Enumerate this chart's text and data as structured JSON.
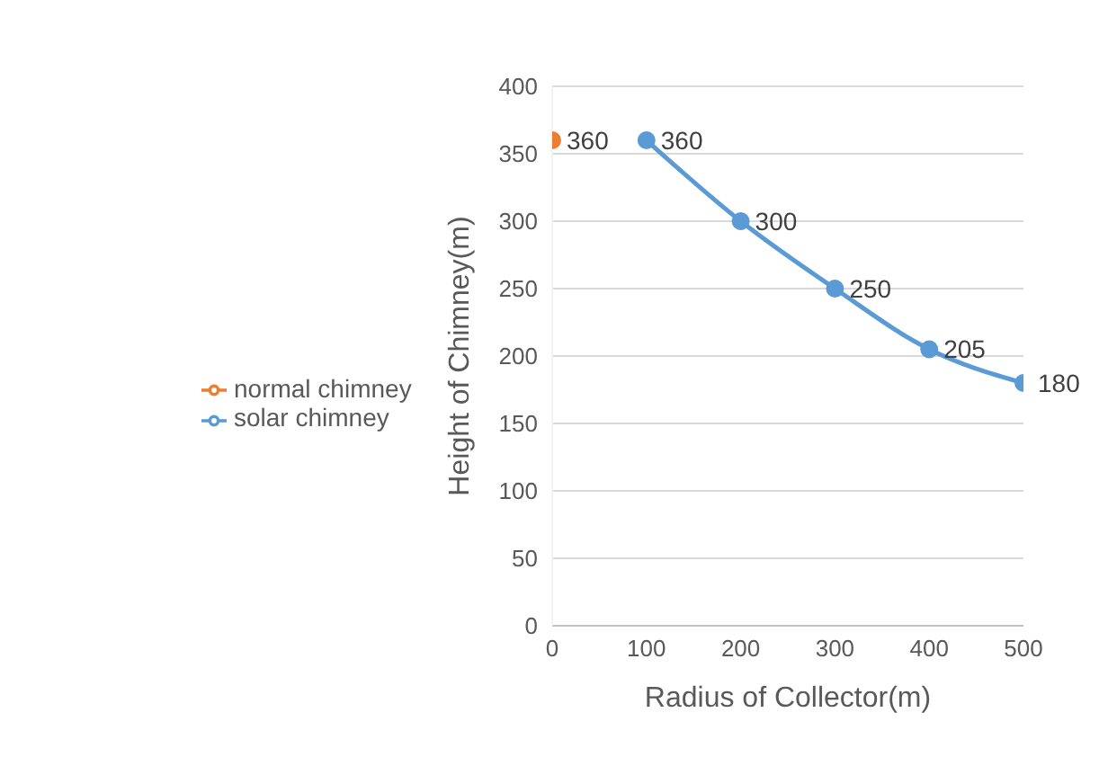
{
  "chart_data": {
    "type": "line",
    "xlabel": "Radius of Collector(m)",
    "ylabel": "Height of Chimney(m)",
    "series": [
      {
        "name": "normal chimney",
        "color": "#ed7d31",
        "x": [
          0
        ],
        "values": [
          360
        ]
      },
      {
        "name": "solar chimney",
        "color": "#5b9bd5",
        "x": [
          100,
          200,
          300,
          400,
          500
        ],
        "values": [
          360,
          300,
          250,
          205,
          180
        ]
      }
    ],
    "xlim": [
      0,
      500
    ],
    "xticks": [
      0,
      100,
      200,
      300,
      400,
      500
    ],
    "ylim": [
      0,
      400
    ],
    "yticks": [
      0,
      50,
      100,
      150,
      200,
      250,
      300,
      350,
      400
    ],
    "grid": "y",
    "legend": "left",
    "marker": "circle",
    "data_labels": true
  }
}
